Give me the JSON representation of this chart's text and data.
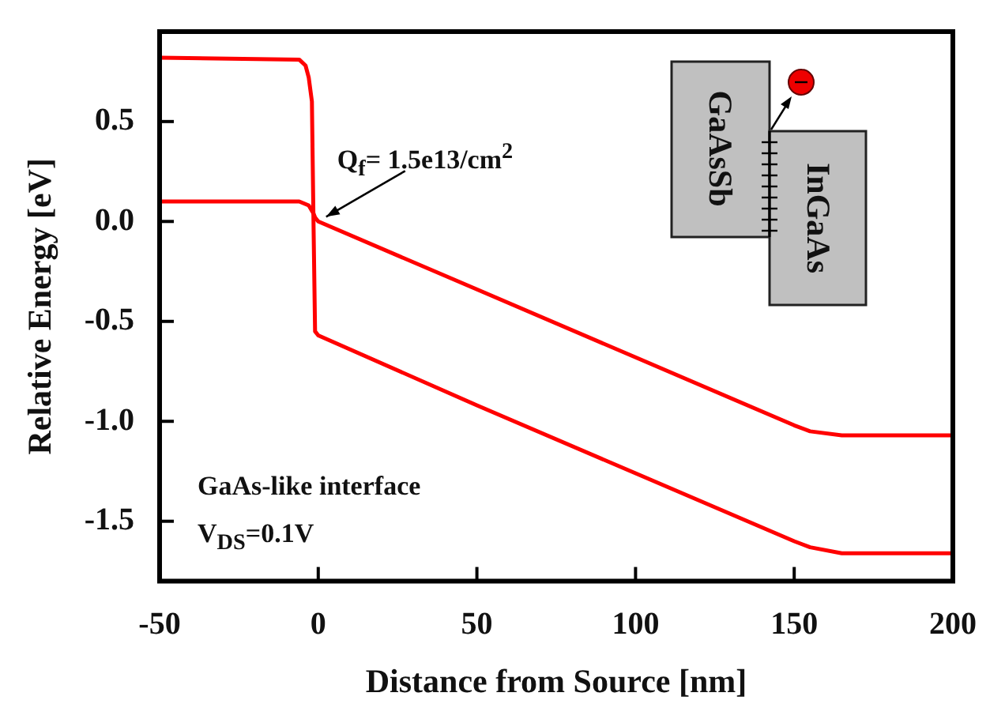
{
  "chart_data": {
    "type": "line",
    "xlabel": "Distance from Source [nm]",
    "ylabel": "Relative Energy [eV]",
    "xlim": [
      -50,
      200
    ],
    "xticks": [
      -50,
      0,
      50,
      100,
      150,
      200
    ],
    "ylim": [
      -1.8,
      0.95
    ],
    "yticks": [
      -1.5,
      {
        "value": -1,
        "label": "-1.0"
      },
      -0.5,
      {
        "value": 0,
        "label": "0.0"
      },
      0.5
    ],
    "grid": false,
    "legend": false,
    "marker": "none",
    "line_style": "solid",
    "series": [
      {
        "color": "#ff0000",
        "x": [
          -50,
          -6,
          -4,
          -3,
          -2,
          -1.5,
          -1,
          0,
          50,
          100,
          150,
          155,
          165,
          200
        ],
        "values": [
          0.82,
          0.81,
          0.78,
          0.72,
          0.6,
          0.0,
          -0.55,
          -0.57,
          -0.92,
          -1.26,
          -1.6,
          -1.63,
          -1.66,
          -1.66
        ]
      },
      {
        "color": "#ff0000",
        "x": [
          -50,
          -6,
          -3,
          -1.5,
          -1,
          0,
          50,
          100,
          150,
          155,
          165,
          200
        ],
        "values": [
          0.1,
          0.1,
          0.08,
          0.04,
          0.02,
          0.0,
          -0.34,
          -0.68,
          -1.02,
          -1.05,
          -1.07,
          -1.07
        ]
      }
    ],
    "annotations": [
      {
        "text": "Q$_{f}$= 1.5e13/cm$^{2}$",
        "x": 0,
        "y": 0.0
      },
      "GaAs-like interface",
      "V$_{DS}$=0.1V",
      "GaAsSb",
      "InGaAs"
    ]
  }
}
